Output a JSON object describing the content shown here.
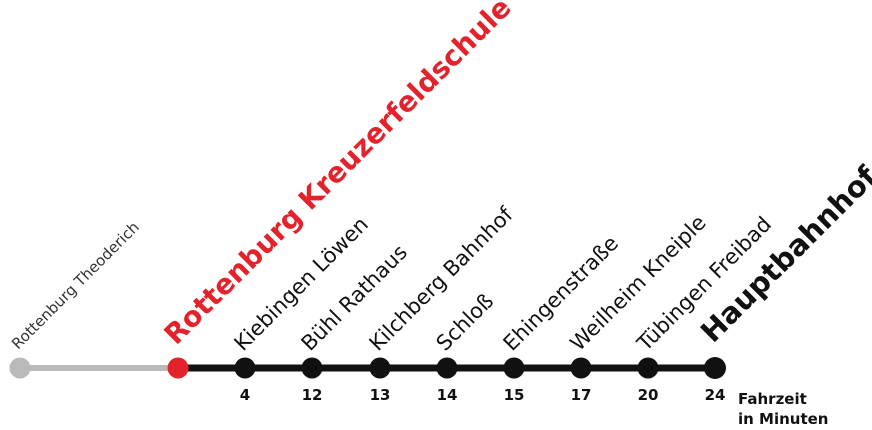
{
  "colors": {
    "inactive_line": "#b9b9b9",
    "active_line": "#111111",
    "highlight": "#e4222b",
    "stop": "#111111",
    "inactive_stop": "#b9b9b9"
  },
  "stops": [
    {
      "name": "Rottenburg Theoderich",
      "time": ""
    },
    {
      "name": "Rottenburg Kreuzerfeldschule",
      "time": ""
    },
    {
      "name": "Kiebingen Löwen",
      "time": "4"
    },
    {
      "name": "Bühl Rathaus",
      "time": "12"
    },
    {
      "name": "Kilchberg Bahnhof",
      "time": "13"
    },
    {
      "name": "Schloß",
      "time": "14"
    },
    {
      "name": "Ehingenstraße",
      "time": "15"
    },
    {
      "name": "Weilheim Kneiple",
      "time": "17"
    },
    {
      "name": "Tübingen Freibad",
      "time": "20"
    },
    {
      "name": "Hauptbahnhof",
      "time": "24"
    }
  ],
  "legend": {
    "line1": "Fahrzeit",
    "line2": "in Minuten"
  }
}
